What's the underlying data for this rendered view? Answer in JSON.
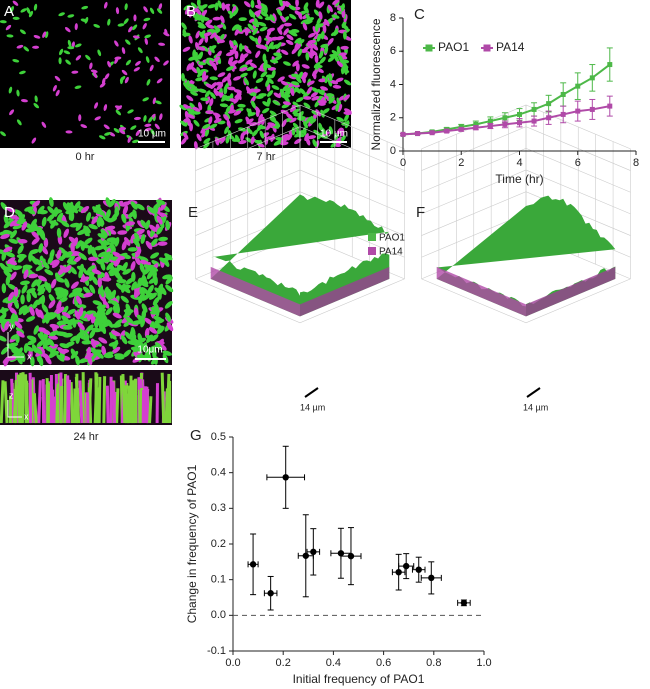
{
  "panels": {
    "A": {
      "label": "A",
      "caption": "0 hr",
      "scale": "10 µm"
    },
    "B": {
      "label": "B",
      "caption": "7 hr",
      "scale": "10 µm"
    },
    "C": {
      "label": "C"
    },
    "D": {
      "label": "D",
      "caption": "24 hr",
      "scale": "10μm",
      "axis_y": "y",
      "axis_x": "x",
      "axis_z": "z",
      "axis_x2": "x"
    },
    "E": {
      "label": "E",
      "legend": [
        "PAO1",
        "PA14"
      ],
      "scale": "14 µm"
    },
    "F": {
      "label": "F",
      "scale": "14 µm"
    },
    "G": {
      "label": "G"
    }
  },
  "chart_data": [
    {
      "type": "line",
      "x_label": "Time (hr)",
      "y_label": "Normalized fluorescence",
      "x": [
        0,
        0.5,
        1,
        1.5,
        2,
        2.5,
        3,
        3.5,
        4,
        4.5,
        5,
        5.5,
        6,
        6.5,
        7.1
      ],
      "series": [
        {
          "name": "PAO1",
          "color": "#4db848",
          "values": [
            1,
            1.05,
            1.15,
            1.3,
            1.45,
            1.6,
            1.8,
            2.0,
            2.2,
            2.5,
            2.85,
            3.4,
            3.9,
            4.4,
            5.2
          ],
          "errors": [
            0.05,
            0.05,
            0.08,
            0.1,
            0.15,
            0.2,
            0.25,
            0.3,
            0.35,
            0.4,
            0.5,
            0.7,
            0.8,
            0.8,
            1.0
          ]
        },
        {
          "name": "PA14",
          "color": "#b04aa8",
          "values": [
            1,
            1.05,
            1.1,
            1.2,
            1.3,
            1.4,
            1.5,
            1.6,
            1.7,
            1.8,
            2.0,
            2.2,
            2.4,
            2.5,
            2.7
          ],
          "errors": [
            0.05,
            0.05,
            0.05,
            0.08,
            0.1,
            0.12,
            0.15,
            0.2,
            0.25,
            0.3,
            0.4,
            0.5,
            0.6,
            0.6,
            0.6
          ]
        }
      ],
      "xlim": [
        0,
        8
      ],
      "xticks": [
        0,
        2,
        4,
        6,
        8
      ],
      "ylim": [
        0,
        8
      ],
      "yticks": [
        0,
        2,
        4,
        6,
        8
      ],
      "legend": "upper left"
    },
    {
      "type": "scatter",
      "x_label": "Initial frequency of PAO1",
      "y_label": "Change in frequency of PAO1",
      "color": "#000000",
      "x": [
        0.08,
        0.15,
        0.21,
        0.29,
        0.32,
        0.43,
        0.47,
        0.66,
        0.69,
        0.74,
        0.79,
        0.92
      ],
      "xerr": [
        0.02,
        0.025,
        0.075,
        0.03,
        0.025,
        0.04,
        0.04,
        0.025,
        0.03,
        0.025,
        0.04,
        0.025
      ],
      "values": [
        0.143,
        0.062,
        0.387,
        0.167,
        0.178,
        0.174,
        0.166,
        0.121,
        0.138,
        0.128,
        0.105,
        0.035
      ],
      "errors": [
        0.085,
        0.047,
        0.087,
        0.115,
        0.065,
        0.07,
        0.08,
        0.05,
        0.035,
        0.035,
        0.045,
        0.008
      ],
      "xlim": [
        0,
        1
      ],
      "xticks": [
        {
          "value": 0,
          "label": "0.0"
        },
        0.2,
        0.4,
        0.6,
        0.8,
        {
          "value": 1,
          "label": "1.0"
        }
      ],
      "ylim": [
        -0.1,
        0.5
      ],
      "yticks": [
        -0.1,
        {
          "value": 0,
          "label": "0.0"
        },
        0.1,
        0.2,
        0.3,
        0.4,
        0.5
      ],
      "hline": 0
    }
  ]
}
